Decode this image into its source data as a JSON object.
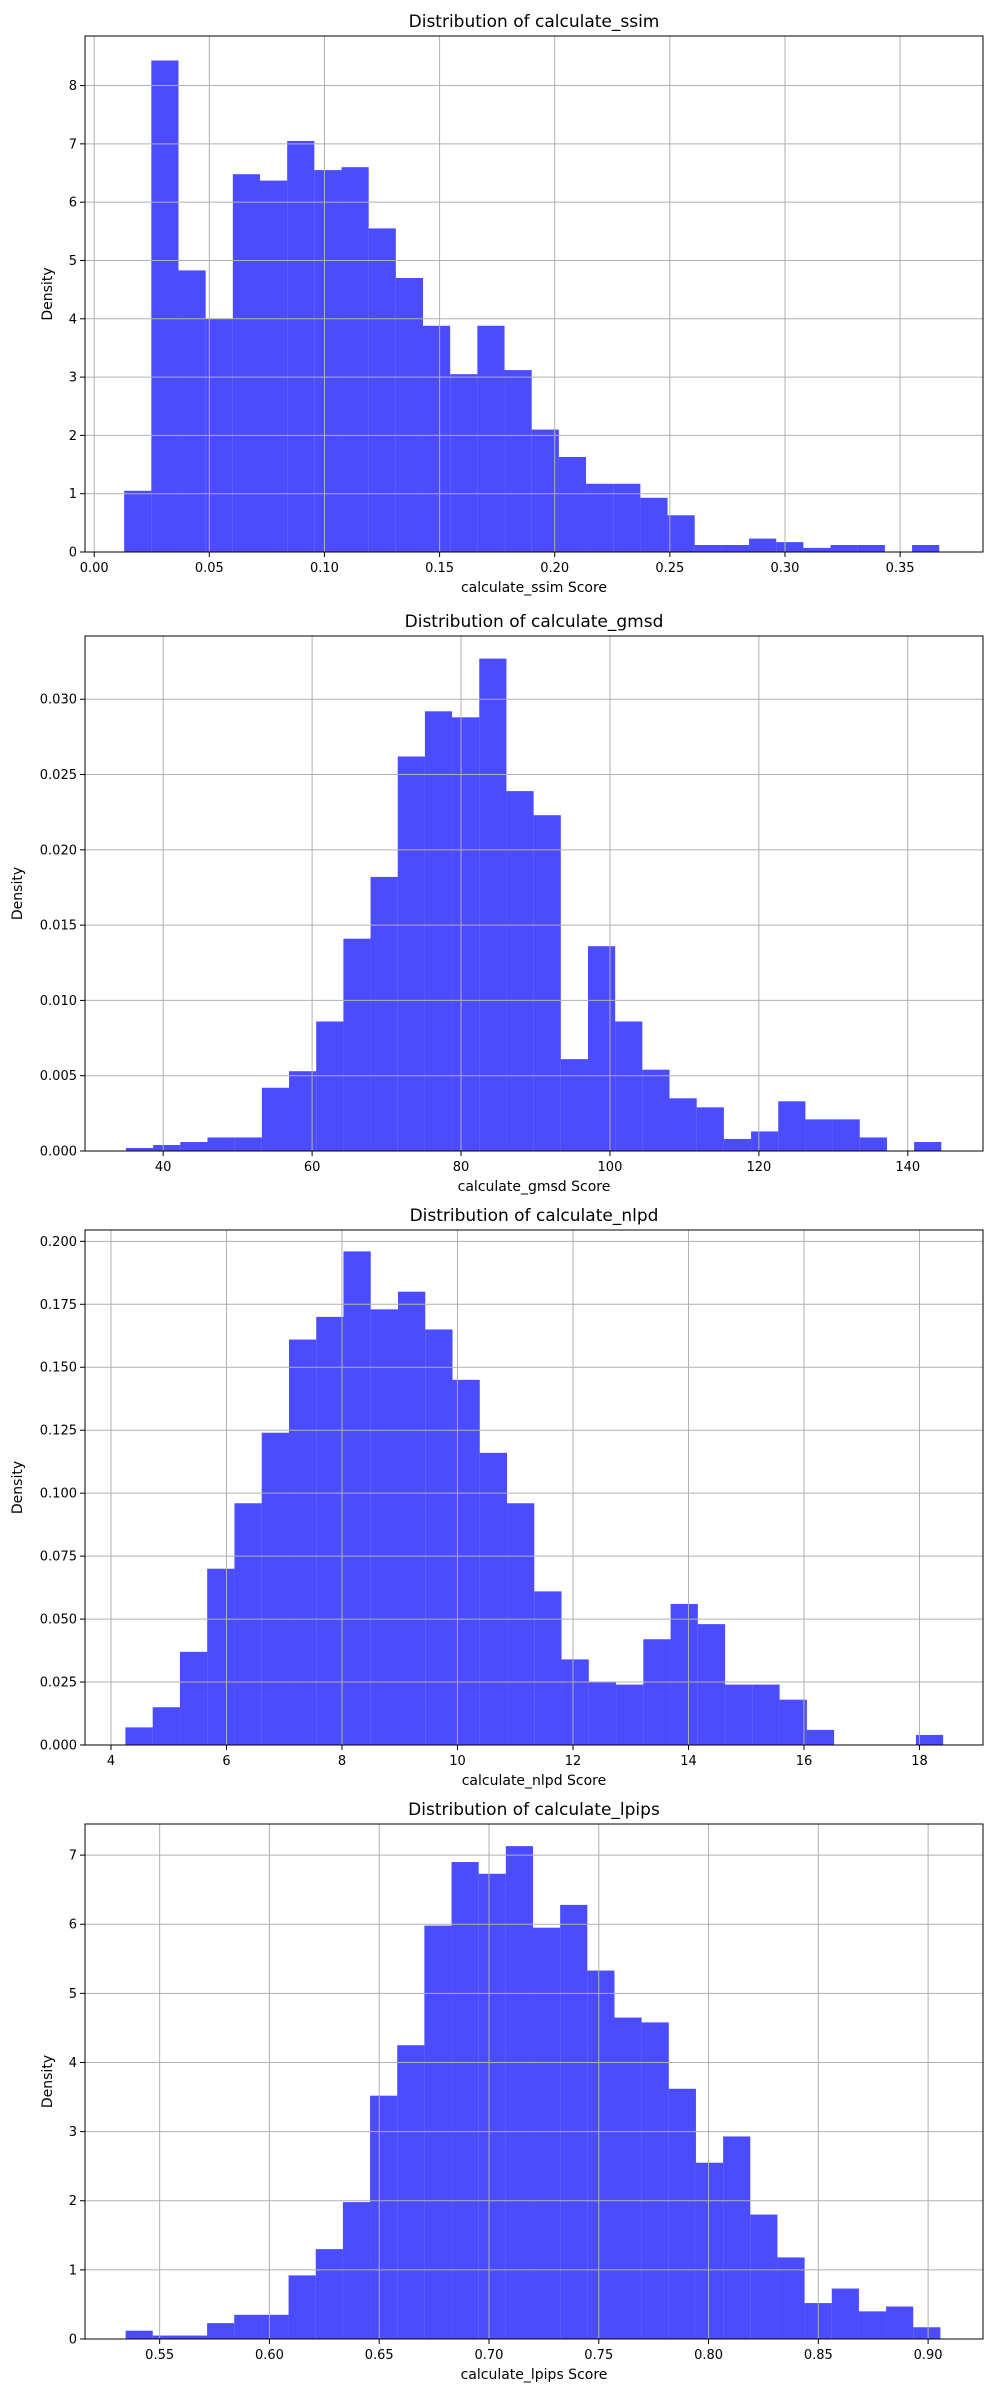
{
  "chart_data": [
    {
      "type": "bar",
      "title": "Distribution of calculate_ssim",
      "xlabel": "calculate_ssim Score",
      "ylabel": "Density",
      "color": "#0000ff",
      "grid": true,
      "xlim": [
        -0.004,
        0.386
      ],
      "ylim": [
        0,
        8.85
      ],
      "xticks": [
        0.0,
        0.05,
        0.1,
        0.15,
        0.2,
        0.25,
        0.3,
        0.35
      ],
      "xtick_labels": [
        "0.00",
        "0.05",
        "0.10",
        "0.15",
        "0.20",
        "0.25",
        "0.30",
        "0.35"
      ],
      "yticks": [
        0,
        1,
        2,
        3,
        4,
        5,
        6,
        7,
        8
      ],
      "ytick_labels": [
        "0",
        "1",
        "2",
        "3",
        "4",
        "5",
        "6",
        "7",
        "8"
      ],
      "bin_start": 0.013,
      "bin_width": 0.0118,
      "values": [
        1.05,
        8.43,
        4.83,
        4.0,
        6.48,
        6.37,
        7.05,
        6.55,
        6.6,
        5.55,
        4.7,
        3.88,
        3.05,
        3.88,
        3.12,
        2.1,
        1.63,
        1.17,
        1.17,
        0.93,
        0.63,
        0.12,
        0.12,
        0.23,
        0.17,
        0.07,
        0.12,
        0.12,
        0.0,
        0.12
      ]
    },
    {
      "type": "bar",
      "title": "Distribution of calculate_gmsd",
      "xlabel": "calculate_gmsd Score",
      "ylabel": "Density",
      "color": "#0000ff",
      "grid": true,
      "xlim": [
        29.5,
        150.1
      ],
      "ylim": [
        0,
        0.0342
      ],
      "xticks": [
        40,
        60,
        80,
        100,
        120,
        140
      ],
      "xtick_labels": [
        "40",
        "60",
        "80",
        "100",
        "120",
        "140"
      ],
      "yticks": [
        0,
        0.005,
        0.01,
        0.015,
        0.02,
        0.025,
        0.03
      ],
      "ytick_labels": [
        "0.000",
        "0.005",
        "0.010",
        "0.015",
        "0.020",
        "0.025",
        "0.030"
      ],
      "bin_start": 35,
      "bin_width": 3.65,
      "values": [
        0.0002,
        0.0004,
        0.0006,
        0.0009,
        0.0009,
        0.0042,
        0.0053,
        0.0086,
        0.0141,
        0.0182,
        0.0262,
        0.0292,
        0.0288,
        0.0327,
        0.0239,
        0.0223,
        0.0061,
        0.0136,
        0.0086,
        0.0054,
        0.0035,
        0.0029,
        0.0008,
        0.0013,
        0.0033,
        0.0021,
        0.0021,
        0.0009,
        0.0,
        0.0006
      ]
    },
    {
      "type": "bar",
      "title": "Distribution of calculate_nlpd",
      "xlabel": "calculate_nlpd Score",
      "ylabel": "Density",
      "color": "#0000ff",
      "grid": true,
      "xlim": [
        3.55,
        19.1
      ],
      "ylim": [
        0,
        0.2045
      ],
      "xticks": [
        4,
        6,
        8,
        10,
        12,
        14,
        16,
        18
      ],
      "xtick_labels": [
        "4",
        "6",
        "8",
        "10",
        "12",
        "14",
        "16",
        "18"
      ],
      "yticks": [
        0,
        0.025,
        0.05,
        0.075,
        0.1,
        0.125,
        0.15,
        0.175,
        0.2
      ],
      "ytick_labels": [
        "0.000",
        "0.025",
        "0.050",
        "0.075",
        "0.100",
        "0.125",
        "0.150",
        "0.175",
        "0.200"
      ],
      "bin_start": 4.25,
      "bin_width": 0.472,
      "values": [
        0.007,
        0.015,
        0.037,
        0.07,
        0.096,
        0.124,
        0.161,
        0.17,
        0.196,
        0.173,
        0.18,
        0.165,
        0.145,
        0.116,
        0.096,
        0.061,
        0.034,
        0.025,
        0.024,
        0.042,
        0.056,
        0.048,
        0.024,
        0.024,
        0.018,
        0.006,
        0.0,
        0.0,
        0.0,
        0.004
      ]
    },
    {
      "type": "bar",
      "title": "Distribution of calculate_lpips",
      "xlabel": "calculate_lpips Score",
      "ylabel": "Density",
      "color": "#0000ff",
      "grid": true,
      "xlim": [
        0.516,
        0.925
      ],
      "ylim": [
        0,
        7.45
      ],
      "xticks": [
        0.55,
        0.6,
        0.65,
        0.7,
        0.75,
        0.8,
        0.85,
        0.9
      ],
      "xtick_labels": [
        "0.55",
        "0.60",
        "0.65",
        "0.70",
        "0.75",
        "0.80",
        "0.85",
        "0.90"
      ],
      "yticks": [
        0,
        1,
        2,
        3,
        4,
        5,
        6,
        7
      ],
      "ytick_labels": [
        "0",
        "1",
        "2",
        "3",
        "4",
        "5",
        "6",
        "7"
      ],
      "bin_start": 0.5345,
      "bin_width": 0.01237,
      "values": [
        0.12,
        0.05,
        0.05,
        0.23,
        0.35,
        0.35,
        0.92,
        1.3,
        1.98,
        3.52,
        4.25,
        5.98,
        6.9,
        6.73,
        7.13,
        5.95,
        6.28,
        5.33,
        4.65,
        4.58,
        3.62,
        2.55,
        2.93,
        1.8,
        1.18,
        0.52,
        0.73,
        0.4,
        0.47,
        0.17
      ]
    }
  ]
}
